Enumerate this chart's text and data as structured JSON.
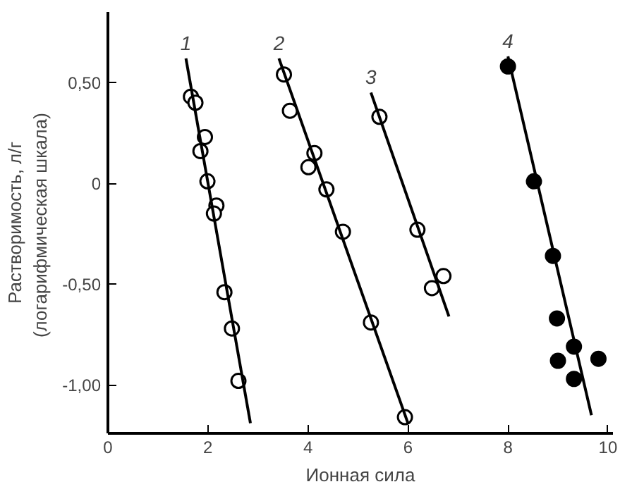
{
  "chart_data": {
    "type": "scatter",
    "xlabel": "Ионная сила",
    "ylabel": "Растворимость, л/г\n(логарифмическая  шкала)",
    "xlim": [
      0,
      10.1
    ],
    "ylim": [
      -1.24,
      0.85
    ],
    "xticks": [
      0,
      2,
      4,
      6,
      8,
      10
    ],
    "yticks": [
      {
        "value": 0.5,
        "label": "0,50"
      },
      0,
      {
        "value": -0.5,
        "label": "-0,50"
      },
      {
        "value": -1.0,
        "label": "-1,00"
      }
    ],
    "grid": false,
    "marker": "circle",
    "series": [
      {
        "color": "#ffffff",
        "x": [
          1.66,
          1.75,
          1.94,
          1.85,
          1.99,
          2.17,
          2.12,
          2.33,
          2.48,
          2.61
        ],
        "values": [
          0.43,
          0.4,
          0.23,
          0.16,
          0.01,
          -0.11,
          -0.15,
          -0.54,
          -0.72,
          -0.98
        ]
      },
      {
        "color": "#ffffff",
        "x": [
          3.52,
          3.64,
          4.13,
          4.01,
          4.37,
          4.7,
          5.26,
          5.94
        ],
        "values": [
          0.54,
          0.36,
          0.15,
          0.08,
          -0.03,
          -0.24,
          -0.69,
          -1.16
        ]
      },
      {
        "color": "#ffffff",
        "x": [
          5.43,
          6.19,
          6.71,
          6.48
        ],
        "values": [
          0.33,
          -0.23,
          -0.46,
          -0.52
        ]
      },
      {
        "color": "#000000",
        "x": [
          8.0,
          8.52,
          8.9,
          8.98,
          9.32,
          9.0,
          9.81,
          9.32
        ],
        "values": [
          0.58,
          0.01,
          -0.36,
          -0.67,
          -0.81,
          -0.88,
          -0.87,
          -0.97
        ]
      },
      {
        "type": "line",
        "marker": "none",
        "name": "1",
        "color": "#000000",
        "x": [
          1.56,
          2.85
        ],
        "values": [
          0.62,
          -1.19
        ]
      },
      {
        "type": "line",
        "marker": "none",
        "name": "2",
        "color": "#000000",
        "x": [
          3.42,
          6.0
        ],
        "values": [
          0.62,
          -1.19
        ]
      },
      {
        "type": "line",
        "marker": "none",
        "name": "3",
        "color": "#000000",
        "x": [
          5.26,
          6.82
        ],
        "values": [
          0.45,
          -0.66
        ]
      },
      {
        "type": "line",
        "marker": "none",
        "name": "4",
        "color": "#000000",
        "x": [
          8.0,
          9.67
        ],
        "values": [
          0.63,
          -1.15
        ]
      }
    ]
  }
}
